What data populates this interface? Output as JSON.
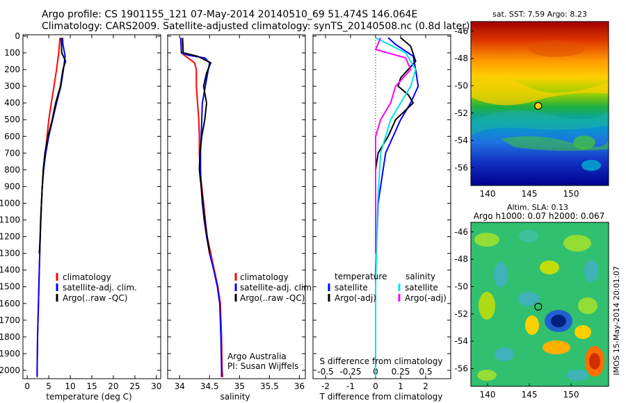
{
  "header": {
    "line1": "Argo profile: CS 1901155_121 07-May-2014 20140510_69 51.474S 146.064E",
    "line2": "Climatology: CARS2009. Satellite-adjusted climatology: synTS_20140508.nc (0.8d later)"
  },
  "colors": {
    "climatology": "#ff0000",
    "satellite": "#0000ff",
    "argo": "#000000",
    "sat_salinity": "#00e5e5",
    "argo_salinity": "#ff00ff"
  },
  "chart_data": [
    {
      "type": "line",
      "panel": "temperature",
      "xlabel": "temperature (deg C)",
      "ylabel": "",
      "xlim": [
        -1,
        31
      ],
      "ylim": [
        2050,
        0
      ],
      "xticks": [
        0,
        5,
        10,
        15,
        20,
        25,
        30
      ],
      "yticks": [
        0,
        100,
        200,
        300,
        400,
        500,
        600,
        700,
        800,
        900,
        1000,
        1100,
        1200,
        1300,
        1400,
        1500,
        1600,
        1700,
        1800,
        1900,
        2000
      ],
      "legend": [
        "climatology",
        "satellite-adj. clim.",
        "Argo(..raw -QC)"
      ],
      "series": [
        {
          "name": "climatology",
          "points": [
            [
              7.6,
              10
            ],
            [
              7.3,
              100
            ],
            [
              6.8,
              200
            ],
            [
              6.2,
              300
            ],
            [
              5.6,
              400
            ],
            [
              5.0,
              500
            ],
            [
              4.6,
              600
            ],
            [
              4.2,
              700
            ],
            [
              3.8,
              800
            ],
            [
              3.5,
              900
            ],
            [
              3.3,
              1000
            ],
            [
              3.0,
              1200
            ],
            [
              2.8,
              1400
            ],
            [
              2.6,
              1600
            ],
            [
              2.4,
              1800
            ],
            [
              2.3,
              2000
            ],
            [
              2.3,
              2040
            ]
          ]
        },
        {
          "name": "satellite-adj. clim.",
          "points": [
            [
              8.2,
              10
            ],
            [
              8.3,
              50
            ],
            [
              8.8,
              120
            ],
            [
              8.4,
              200
            ],
            [
              7.8,
              300
            ],
            [
              6.8,
              400
            ],
            [
              5.9,
              500
            ],
            [
              5.0,
              600
            ],
            [
              4.3,
              700
            ],
            [
              3.8,
              800
            ],
            [
              3.5,
              900
            ],
            [
              3.3,
              1000
            ],
            [
              3.0,
              1200
            ],
            [
              2.8,
              1400
            ],
            [
              2.6,
              1600
            ],
            [
              2.4,
              1800
            ],
            [
              2.3,
              2000
            ],
            [
              2.3,
              2040
            ]
          ]
        },
        {
          "name": "Argo(..raw -QC)",
          "points": [
            [
              7.9,
              10
            ],
            [
              8.0,
              100
            ],
            [
              8.9,
              150
            ],
            [
              8.3,
              200
            ],
            [
              7.7,
              300
            ],
            [
              6.6,
              400
            ],
            [
              5.8,
              500
            ],
            [
              4.8,
              600
            ],
            [
              4.1,
              700
            ],
            [
              3.7,
              800
            ],
            [
              3.5,
              900
            ],
            [
              3.3,
              1000
            ],
            [
              3.1,
              1100
            ],
            [
              3.0,
              1200
            ],
            [
              2.8,
              1300
            ]
          ]
        }
      ]
    },
    {
      "type": "line",
      "panel": "salinity",
      "xlabel": "salinity",
      "ylabel": "",
      "xlim": [
        33.8,
        36.1
      ],
      "ylim": [
        2050,
        0
      ],
      "xticks": [
        34,
        34.5,
        35,
        35.5,
        36
      ],
      "legend": [
        "climatology",
        "satellite-adj. clim.",
        "Argo(..raw -QC)"
      ],
      "annotations": [
        "Argo Australia",
        "PI: Susan Wijffels"
      ],
      "series": [
        {
          "name": "climatology",
          "points": [
            [
              34.02,
              10
            ],
            [
              34.03,
              100
            ],
            [
              34.1,
              120
            ],
            [
              34.25,
              160
            ],
            [
              34.28,
              200
            ],
            [
              34.28,
              300
            ],
            [
              34.3,
              400
            ],
            [
              34.32,
              500
            ],
            [
              34.33,
              600
            ],
            [
              34.33,
              700
            ],
            [
              34.34,
              800
            ],
            [
              34.37,
              900
            ],
            [
              34.4,
              1000
            ],
            [
              34.43,
              1100
            ],
            [
              34.46,
              1200
            ],
            [
              34.52,
              1300
            ],
            [
              34.58,
              1400
            ],
            [
              34.64,
              1500
            ],
            [
              34.68,
              1600
            ],
            [
              34.7,
              1800
            ],
            [
              34.71,
              2000
            ],
            [
              34.72,
              2040
            ]
          ]
        },
        {
          "name": "satellite-adj. clim.",
          "points": [
            [
              34.02,
              10
            ],
            [
              34.03,
              100
            ],
            [
              34.15,
              115
            ],
            [
              34.42,
              130
            ],
            [
              34.5,
              160
            ],
            [
              34.48,
              200
            ],
            [
              34.43,
              300
            ],
            [
              34.38,
              400
            ],
            [
              34.37,
              500
            ],
            [
              34.36,
              600
            ],
            [
              34.35,
              700
            ],
            [
              34.35,
              800
            ],
            [
              34.36,
              900
            ],
            [
              34.38,
              1000
            ],
            [
              34.41,
              1100
            ],
            [
              34.45,
              1200
            ],
            [
              34.5,
              1300
            ],
            [
              34.57,
              1400
            ],
            [
              34.63,
              1500
            ],
            [
              34.67,
              1600
            ],
            [
              34.69,
              1800
            ],
            [
              34.7,
              2000
            ],
            [
              34.7,
              2040
            ]
          ]
        },
        {
          "name": "Argo(..raw -QC)",
          "points": [
            [
              34.05,
              10
            ],
            [
              34.06,
              100
            ],
            [
              34.3,
              120
            ],
            [
              34.52,
              160
            ],
            [
              34.45,
              220
            ],
            [
              34.4,
              300
            ],
            [
              34.45,
              400
            ],
            [
              34.42,
              500
            ],
            [
              34.37,
              600
            ],
            [
              34.34,
              700
            ],
            [
              34.33,
              800
            ],
            [
              34.36,
              900
            ],
            [
              34.39,
              1000
            ],
            [
              34.42,
              1100
            ],
            [
              34.46,
              1200
            ],
            [
              34.5,
              1300
            ]
          ]
        }
      ]
    },
    {
      "type": "line",
      "panel": "difference",
      "xlabel": "T difference from climatology",
      "xlabel_top": "S difference from climatology",
      "ylabel": "",
      "xlim": [
        -2.5,
        3.0
      ],
      "ylim": [
        2050,
        0
      ],
      "xticks": [
        -2,
        -1,
        0,
        1,
        2
      ],
      "xticks_top": [
        -0.5,
        -0.25,
        0,
        0.25,
        0.5
      ],
      "legend_temperature": {
        "heading": "temperature",
        "items": [
          "satellite",
          "Argo(-adj)"
        ]
      },
      "legend_salinity": {
        "heading": "salinity",
        "items": [
          "satellite",
          "Argo(-adj)"
        ]
      },
      "zero_line": "dotted",
      "series": [
        {
          "name": "satellite",
          "group": "temperature",
          "points": [
            [
              0.5,
              10
            ],
            [
              0.8,
              50
            ],
            [
              1.5,
              120
            ],
            [
              1.6,
              200
            ],
            [
              1.7,
              300
            ],
            [
              1.4,
              400
            ],
            [
              1.0,
              500
            ],
            [
              0.7,
              600
            ],
            [
              0.4,
              700
            ],
            [
              0.3,
              800
            ],
            [
              0.2,
              900
            ],
            [
              0.1,
              1000
            ],
            [
              0.05,
              1200
            ],
            [
              0.0,
              1400
            ],
            [
              0.0,
              1600
            ],
            [
              0.0,
              2040
            ]
          ]
        },
        {
          "name": "Argo(-adj)",
          "group": "temperature",
          "points": [
            [
              1.0,
              10
            ],
            [
              1.4,
              60
            ],
            [
              1.6,
              150
            ],
            [
              1.0,
              250
            ],
            [
              0.9,
              300
            ],
            [
              1.3,
              350
            ],
            [
              1.5,
              400
            ],
            [
              0.8,
              500
            ],
            [
              0.5,
              600
            ],
            [
              0.1,
              700
            ],
            [
              0.0,
              800
            ],
            [
              0.0,
              900
            ],
            [
              0.0,
              1000
            ],
            [
              0.0,
              1300
            ]
          ]
        },
        {
          "name": "satellite",
          "group": "salinity",
          "points": [
            [
              0.0,
              10
            ],
            [
              0.3,
              100
            ],
            [
              0.4,
              200
            ],
            [
              0.35,
              300
            ],
            [
              0.25,
              400
            ],
            [
              0.15,
              500
            ],
            [
              0.1,
              600
            ],
            [
              0.05,
              700
            ],
            [
              0.04,
              800
            ],
            [
              0.02,
              1000
            ],
            [
              0.0,
              1500
            ],
            [
              0.0,
              2040
            ]
          ]
        },
        {
          "name": "Argo(-adj)",
          "group": "salinity",
          "points": [
            [
              0.05,
              10
            ],
            [
              0.0,
              80
            ],
            [
              0.3,
              130
            ],
            [
              0.35,
              200
            ],
            [
              0.2,
              300
            ],
            [
              0.15,
              400
            ],
            [
              0.05,
              500
            ],
            [
              0.0,
              600
            ],
            [
              0.0,
              800
            ],
            [
              0.0,
              1300
            ]
          ]
        }
      ]
    },
    {
      "type": "heatmap",
      "panel": "sst-map",
      "title": "sat. SST: 7.59  Argo: 8.23",
      "xticks": [
        140,
        145,
        150
      ],
      "yticks": [
        -46,
        -48,
        -50,
        -52,
        -54,
        -56
      ],
      "xlim": [
        138,
        154.5
      ],
      "ylim": [
        -57.3,
        -45.3
      ],
      "marker": {
        "lon": 146.064,
        "lat": -51.474
      }
    },
    {
      "type": "heatmap",
      "panel": "sla-map",
      "title": "Altim. SLA: 0.13",
      "subtitle": "Argo h1000: 0.07 h2000: 0.067",
      "xticks": [
        140,
        145,
        150
      ],
      "yticks": [
        -46,
        -48,
        -50,
        -52,
        -54,
        -56
      ],
      "xlim": [
        138,
        154.5
      ],
      "ylim": [
        -57.3,
        -45.3
      ],
      "marker": {
        "lon": 146.064,
        "lat": -51.474
      }
    }
  ],
  "footer": {
    "watermark": "IMOS 15-May-2014 20:01:07"
  }
}
